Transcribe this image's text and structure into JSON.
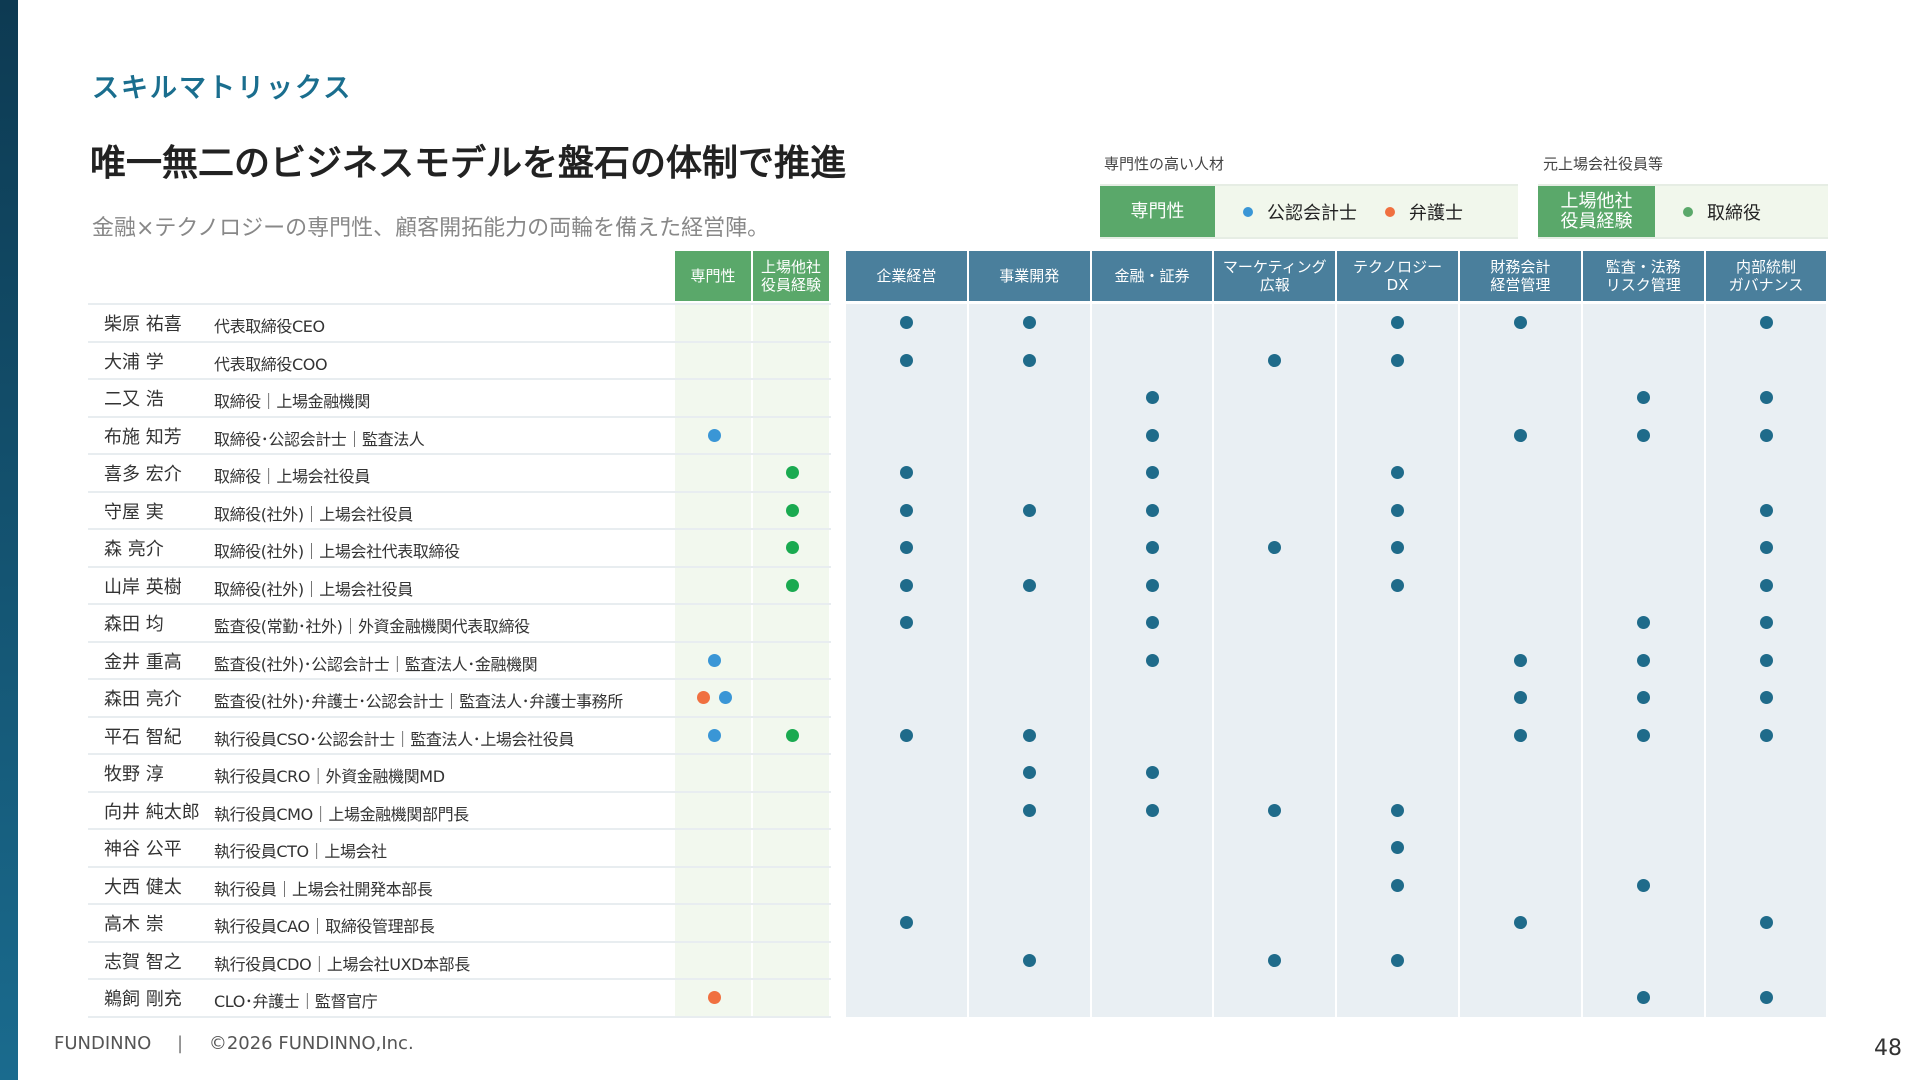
{
  "header": {
    "eyebrow": "スキルマトリックス",
    "title": "唯一無二のビジネスモデルを盤石の体制で推進",
    "description": "金融×テクノロジーの専門性、顧客開拓能力の両輪を備えた経営陣。"
  },
  "legend": {
    "expertise": {
      "label": "専門性の高い人材",
      "head": "専門性",
      "items": [
        {
          "label": "公認会計士",
          "color": "#3a96d6"
        },
        {
          "label": "弁護士",
          "color": "#f07040"
        }
      ]
    },
    "board": {
      "label": "元上場会社役員等",
      "head": "上場他社\n役員経験",
      "items": [
        {
          "label": "取締役",
          "color": "#5aa86a"
        }
      ]
    }
  },
  "colors": {
    "skill_header": "#4a7f9c",
    "green_header": "#5aa86a",
    "skill_dot": "#1f6b8a",
    "cpa": "#3a96d6",
    "lawyer": "#f07040",
    "board": "#1aaa50",
    "skill_bg": "#e9eff3",
    "green_bg": "#f2f8ee"
  },
  "columns": {
    "green": [
      "専門性",
      "上場他社\n役員経験"
    ],
    "skills": [
      "企業経営",
      "事業開発",
      "金融・証券",
      "マーケティング\n広報",
      "テクノロジー\nDX",
      "財務会計\n経営管理",
      "監査・法務\nリスク管理",
      "内部統制\nガバナンス"
    ]
  },
  "rows": [
    {
      "name": "柴原 祐喜",
      "role": "代表取締役CEO",
      "expertise": [],
      "board": false,
      "skills": [
        1,
        1,
        0,
        0,
        1,
        1,
        0,
        1
      ]
    },
    {
      "name": "大浦 学",
      "role": "代表取締役COO",
      "expertise": [],
      "board": false,
      "skills": [
        1,
        1,
        0,
        1,
        1,
        0,
        0,
        0
      ]
    },
    {
      "name": "二又 浩",
      "role": "取締役｜上場金融機関",
      "expertise": [],
      "board": false,
      "skills": [
        0,
        0,
        1,
        0,
        0,
        0,
        1,
        1
      ]
    },
    {
      "name": "布施 知芳",
      "role": "取締役･公認会計士｜監査法人",
      "expertise": [
        "cpa"
      ],
      "board": false,
      "skills": [
        0,
        0,
        1,
        0,
        0,
        1,
        1,
        1
      ]
    },
    {
      "name": "喜多 宏介",
      "role": "取締役｜上場会社役員",
      "expertise": [],
      "board": true,
      "skills": [
        1,
        0,
        1,
        0,
        1,
        0,
        0,
        0
      ]
    },
    {
      "name": "守屋 実",
      "role": "取締役(社外)｜上場会社役員",
      "expertise": [],
      "board": true,
      "skills": [
        1,
        1,
        1,
        0,
        1,
        0,
        0,
        1
      ]
    },
    {
      "name": "森 亮介",
      "role": "取締役(社外)｜上場会社代表取締役",
      "expertise": [],
      "board": true,
      "skills": [
        1,
        0,
        1,
        1,
        1,
        0,
        0,
        1
      ]
    },
    {
      "name": "山岸 英樹",
      "role": "取締役(社外)｜上場会社役員",
      "expertise": [],
      "board": true,
      "skills": [
        1,
        1,
        1,
        0,
        1,
        0,
        0,
        1
      ]
    },
    {
      "name": "森田 均",
      "role": "監査役(常勤･社外)｜外資金融機関代表取締役",
      "expertise": [],
      "board": false,
      "skills": [
        1,
        0,
        1,
        0,
        0,
        0,
        1,
        1
      ]
    },
    {
      "name": "金井 重高",
      "role": "監査役(社外)･公認会計士｜監査法人･金融機関",
      "expertise": [
        "cpa"
      ],
      "board": false,
      "skills": [
        0,
        0,
        1,
        0,
        0,
        1,
        1,
        1
      ]
    },
    {
      "name": "森田 亮介",
      "role": "監査役(社外)･弁護士･公認会計士｜監査法人･弁護士事務所",
      "expertise": [
        "lawyer",
        "cpa"
      ],
      "board": false,
      "skills": [
        0,
        0,
        0,
        0,
        0,
        1,
        1,
        1
      ]
    },
    {
      "name": "平石 智紀",
      "role": "執行役員CSO･公認会計士｜監査法人･上場会社役員",
      "expertise": [
        "cpa"
      ],
      "board": true,
      "skills": [
        1,
        1,
        0,
        0,
        0,
        1,
        1,
        1
      ]
    },
    {
      "name": "牧野 淳",
      "role": "執行役員CRO｜外資金融機関MD",
      "expertise": [],
      "board": false,
      "skills": [
        0,
        1,
        1,
        0,
        0,
        0,
        0,
        0
      ]
    },
    {
      "name": "向井 純太郎",
      "role": "執行役員CMO｜上場金融機関部門長",
      "expertise": [],
      "board": false,
      "skills": [
        0,
        1,
        1,
        1,
        1,
        0,
        0,
        0
      ]
    },
    {
      "name": "神谷 公平",
      "role": "執行役員CTO｜上場会社",
      "expertise": [],
      "board": false,
      "skills": [
        0,
        0,
        0,
        0,
        1,
        0,
        0,
        0
      ]
    },
    {
      "name": "大西 健太",
      "role": "執行役員｜上場会社開発本部長",
      "expertise": [],
      "board": false,
      "skills": [
        0,
        0,
        0,
        0,
        1,
        0,
        1,
        0
      ]
    },
    {
      "name": "高木 崇",
      "role": "執行役員CAO｜取締役管理部長",
      "expertise": [],
      "board": false,
      "skills": [
        1,
        0,
        0,
        0,
        0,
        1,
        0,
        1
      ]
    },
    {
      "name": "志賀 智之",
      "role": "執行役員CDO｜上場会社UXD本部長",
      "expertise": [],
      "board": false,
      "skills": [
        0,
        1,
        0,
        1,
        1,
        0,
        0,
        0
      ]
    },
    {
      "name": "鵜飼 剛充",
      "role": "CLO･弁護士｜監督官庁",
      "expertise": [
        "lawyer"
      ],
      "board": false,
      "skills": [
        0,
        0,
        0,
        0,
        0,
        0,
        1,
        1
      ]
    }
  ],
  "footer": {
    "brand": "FUNDINNO",
    "separator": "|",
    "copyright": "©2026 FUNDINNO,Inc.",
    "page": "48"
  }
}
